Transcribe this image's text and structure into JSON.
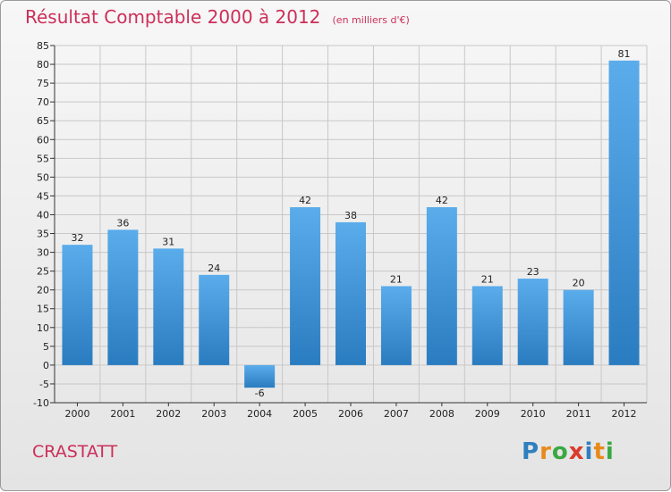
{
  "header": {
    "title": "Résultat Comptable 2000 à 2012",
    "subtitle": "(en milliers d'€)"
  },
  "footer": {
    "commune": "CRASTATT",
    "brand_letters": [
      "P",
      "r",
      "o",
      "x",
      "i",
      "t",
      "i"
    ],
    "brand_colors": [
      "#2f7fc0",
      "#e88a1a",
      "#3aa843",
      "#d93a2b",
      "#2f7fc0",
      "#e88a1a",
      "#3aa843"
    ]
  },
  "colors": {
    "bar_light": "#5aaceb",
    "bar_dark": "#2a7cc0",
    "grid": "#c8c8c8",
    "axis": "#333333",
    "accent": "#cc2f59"
  },
  "chart_data": {
    "type": "bar",
    "title": "Résultat Comptable 2000 à 2012",
    "subtitle": "(en milliers d'€)",
    "xlabel": "",
    "ylabel": "",
    "categories": [
      "2000",
      "2001",
      "2002",
      "2003",
      "2004",
      "2005",
      "2006",
      "2007",
      "2008",
      "2009",
      "2010",
      "2011",
      "2012"
    ],
    "values": [
      32,
      36,
      31,
      24,
      -6,
      42,
      38,
      21,
      42,
      21,
      23,
      20,
      81
    ],
    "ylim": [
      -10,
      85
    ],
    "yticks": [
      -10,
      -5,
      0,
      5,
      10,
      15,
      20,
      25,
      30,
      35,
      40,
      45,
      50,
      55,
      60,
      65,
      70,
      75,
      80,
      85
    ],
    "grid": true
  }
}
